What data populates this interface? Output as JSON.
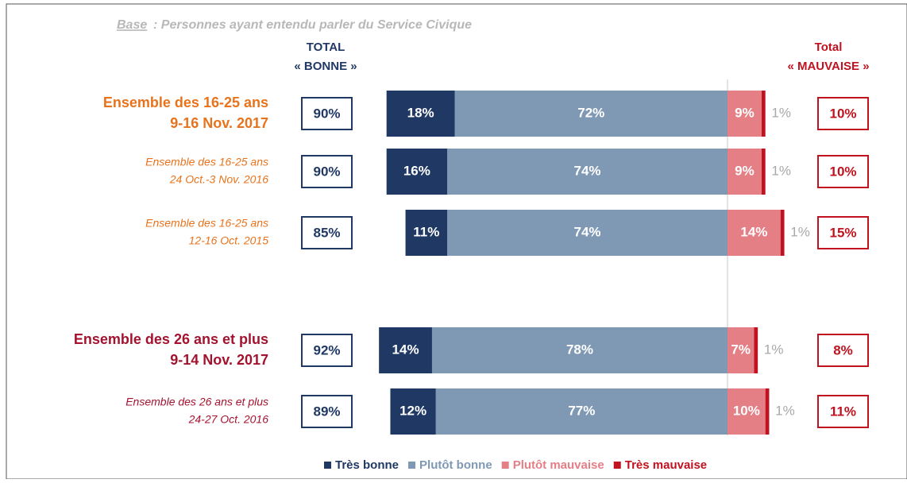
{
  "chart_data": {
    "type": "bar",
    "stacked": "diverging",
    "base": "Base",
    "subtitle": ": Personnes ayant entendu parler du Service Civique",
    "categories": [
      [
        "Ensemble des 16-25 ans",
        "9-16 Nov. 2017"
      ],
      [
        "Ensemble des 16-25 ans",
        "24 Oct.-3 Nov. 2016"
      ],
      [
        "Ensemble des 16-25 ans",
        "12-16 Oct. 2015"
      ],
      [
        "Ensemble des 26 ans et plus",
        "9-14 Nov. 2017"
      ],
      [
        "Ensemble des 26 ans et plus",
        "24-27 Oct. 2016"
      ]
    ],
    "category_colors": [
      "#e8731c",
      "#e8731c",
      "#e8731c",
      "#a3132f",
      "#a3132f"
    ],
    "category_bold": [
      true,
      false,
      false,
      true,
      false
    ],
    "total_bonne": {
      "header": [
        "TOTAL",
        "« BONNE »"
      ],
      "color": "#1f3864",
      "values": [
        90,
        90,
        85,
        92,
        89
      ],
      "value_labels": [
        "90%",
        "90%",
        "85%",
        "92%",
        "89%"
      ]
    },
    "total_mauvaise": {
      "header": [
        "Total",
        "« MAUVAISE »"
      ],
      "color": "#c0121f",
      "values": [
        10,
        10,
        15,
        8,
        11
      ],
      "value_labels": [
        "10%",
        "10%",
        "15%",
        "8%",
        "11%"
      ]
    },
    "series": [
      {
        "name": "Très bonne",
        "color": "#1f3864",
        "side": "left",
        "values": [
          18,
          16,
          11,
          14,
          12
        ],
        "value_labels": [
          "18%",
          "16%",
          "11%",
          "14%",
          "12%"
        ]
      },
      {
        "name": "Plutôt bonne",
        "color": "#7f99b5",
        "side": "left",
        "values": [
          72,
          74,
          74,
          78,
          77
        ],
        "value_labels": [
          "72%",
          "74%",
          "74%",
          "78%",
          "77%"
        ]
      },
      {
        "name": "Plutôt mauvaise",
        "color": "#e57f86",
        "side": "right",
        "values": [
          9,
          9,
          14,
          7,
          10
        ],
        "value_labels": [
          "9%",
          "9%",
          "14%",
          "7%",
          "10%"
        ]
      },
      {
        "name": "Très mauvaise",
        "color": "#c0121f",
        "side": "right",
        "values": [
          1,
          1,
          1,
          1,
          1
        ],
        "value_labels": [
          "1%",
          "1%",
          "1%",
          "1%",
          "1%"
        ]
      }
    ]
  }
}
